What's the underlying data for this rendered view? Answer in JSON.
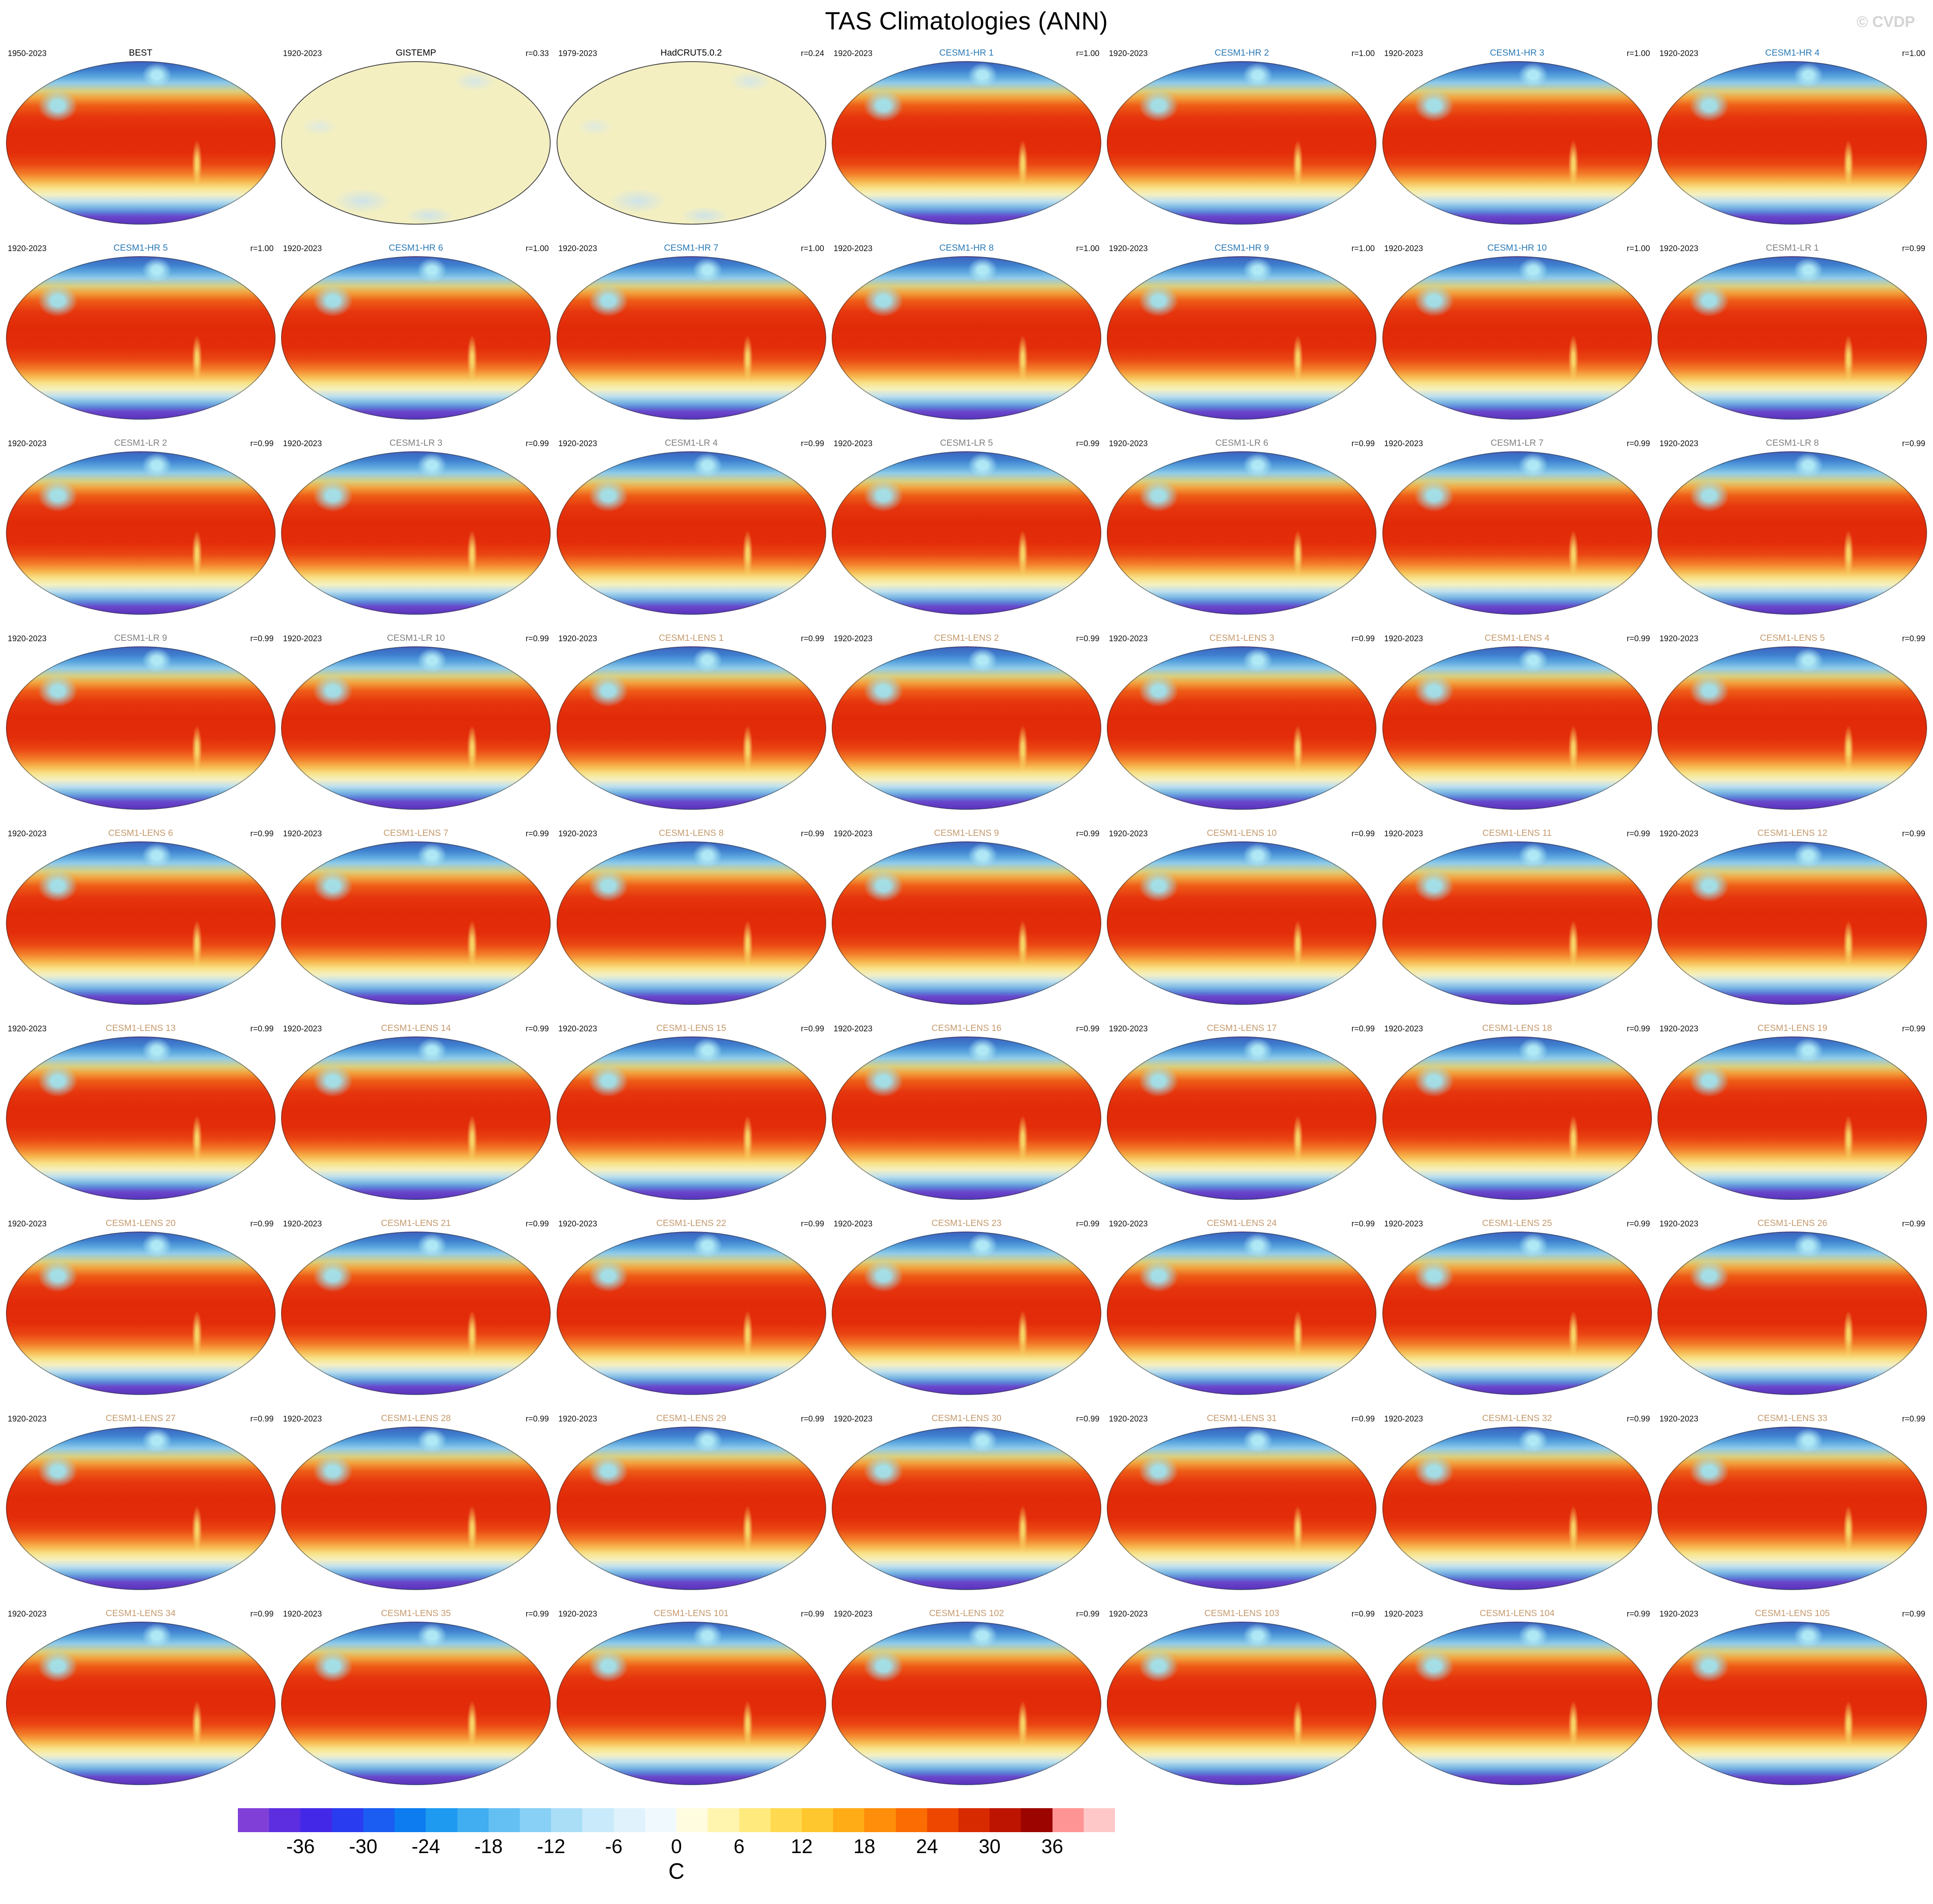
{
  "page": {
    "watermark": "© CVDP"
  },
  "title_colors": {
    "obs": "#000000",
    "hr": "#2a7ab5",
    "lr": "#7f7f7f",
    "lens": "#c59a6d"
  },
  "chart_data": {
    "type": "heatmap",
    "title": "TAS Climatologies (ANN)",
    "subtitle": "Grid of global surface air temperature climatology maps (annual mean), elliptical global projection",
    "units": "C",
    "colorbar": {
      "unit": "C",
      "min": -42,
      "max": 42,
      "step": 3,
      "labels": [
        -36,
        -30,
        -24,
        -18,
        -12,
        -6,
        0,
        6,
        12,
        18,
        24,
        30,
        36
      ],
      "colors": [
        "#8040d8",
        "#5c2ee0",
        "#4428e8",
        "#2a3cf0",
        "#1b5cf2",
        "#0d7cf0",
        "#1e9af0",
        "#40aef0",
        "#64c0f2",
        "#88d0f5",
        "#aadef7",
        "#c8eafa",
        "#e0f3fc",
        "#f0f9fe",
        "#fffce0",
        "#fff5ae",
        "#ffea7e",
        "#ffda50",
        "#ffc72e",
        "#ffac16",
        "#ff8e0a",
        "#fb6c02",
        "#ee4800",
        "#d82a00",
        "#bc1400",
        "#9c0400",
        "#ff9494",
        "#ffc8c8"
      ]
    },
    "panels": [
      {
        "date": "1950-2023",
        "title": "BEST",
        "r": "",
        "group": "obs",
        "style": "warm"
      },
      {
        "date": "1920-2023",
        "title": "GISTEMP",
        "r": "r=0.33",
        "group": "obs",
        "style": "pale"
      },
      {
        "date": "1979-2023",
        "title": "HadCRUT5.0.2",
        "r": "r=0.24",
        "group": "obs",
        "style": "pale"
      },
      {
        "date": "1920-2023",
        "title": "CESM1-HR 1",
        "r": "r=1.00",
        "group": "hr",
        "style": "warm"
      },
      {
        "date": "1920-2023",
        "title": "CESM1-HR 2",
        "r": "r=1.00",
        "group": "hr",
        "style": "warm"
      },
      {
        "date": "1920-2023",
        "title": "CESM1-HR 3",
        "r": "r=1.00",
        "group": "hr",
        "style": "warm"
      },
      {
        "date": "1920-2023",
        "title": "CESM1-HR 4",
        "r": "r=1.00",
        "group": "hr",
        "style": "warm"
      },
      {
        "date": "1920-2023",
        "title": "CESM1-HR 5",
        "r": "r=1.00",
        "group": "hr",
        "style": "warm"
      },
      {
        "date": "1920-2023",
        "title": "CESM1-HR 6",
        "r": "r=1.00",
        "group": "hr",
        "style": "warm"
      },
      {
        "date": "1920-2023",
        "title": "CESM1-HR 7",
        "r": "r=1.00",
        "group": "hr",
        "style": "warm"
      },
      {
        "date": "1920-2023",
        "title": "CESM1-HR 8",
        "r": "r=1.00",
        "group": "hr",
        "style": "warm"
      },
      {
        "date": "1920-2023",
        "title": "CESM1-HR 9",
        "r": "r=1.00",
        "group": "hr",
        "style": "warm"
      },
      {
        "date": "1920-2023",
        "title": "CESM1-HR 10",
        "r": "r=1.00",
        "group": "hr",
        "style": "warm"
      },
      {
        "date": "1920-2023",
        "title": "CESM1-LR 1",
        "r": "r=0.99",
        "group": "lr",
        "style": "warm"
      },
      {
        "date": "1920-2023",
        "title": "CESM1-LR 2",
        "r": "r=0.99",
        "group": "lr",
        "style": "warm"
      },
      {
        "date": "1920-2023",
        "title": "CESM1-LR 3",
        "r": "r=0.99",
        "group": "lr",
        "style": "warm"
      },
      {
        "date": "1920-2023",
        "title": "CESM1-LR 4",
        "r": "r=0.99",
        "group": "lr",
        "style": "warm"
      },
      {
        "date": "1920-2023",
        "title": "CESM1-LR 5",
        "r": "r=0.99",
        "group": "lr",
        "style": "warm"
      },
      {
        "date": "1920-2023",
        "title": "CESM1-LR 6",
        "r": "r=0.99",
        "group": "lr",
        "style": "warm"
      },
      {
        "date": "1920-2023",
        "title": "CESM1-LR 7",
        "r": "r=0.99",
        "group": "lr",
        "style": "warm"
      },
      {
        "date": "1920-2023",
        "title": "CESM1-LR 8",
        "r": "r=0.99",
        "group": "lr",
        "style": "warm"
      },
      {
        "date": "1920-2023",
        "title": "CESM1-LR 9",
        "r": "r=0.99",
        "group": "lr",
        "style": "warm"
      },
      {
        "date": "1920-2023",
        "title": "CESM1-LR 10",
        "r": "r=0.99",
        "group": "lr",
        "style": "warm"
      },
      {
        "date": "1920-2023",
        "title": "CESM1-LENS 1",
        "r": "r=0.99",
        "group": "lens",
        "style": "warm"
      },
      {
        "date": "1920-2023",
        "title": "CESM1-LENS 2",
        "r": "r=0.99",
        "group": "lens",
        "style": "warm"
      },
      {
        "date": "1920-2023",
        "title": "CESM1-LENS 3",
        "r": "r=0.99",
        "group": "lens",
        "style": "warm"
      },
      {
        "date": "1920-2023",
        "title": "CESM1-LENS 4",
        "r": "r=0.99",
        "group": "lens",
        "style": "warm"
      },
      {
        "date": "1920-2023",
        "title": "CESM1-LENS 5",
        "r": "r=0.99",
        "group": "lens",
        "style": "warm"
      },
      {
        "date": "1920-2023",
        "title": "CESM1-LENS 6",
        "r": "r=0.99",
        "group": "lens",
        "style": "warm"
      },
      {
        "date": "1920-2023",
        "title": "CESM1-LENS 7",
        "r": "r=0.99",
        "group": "lens",
        "style": "warm"
      },
      {
        "date": "1920-2023",
        "title": "CESM1-LENS 8",
        "r": "r=0.99",
        "group": "lens",
        "style": "warm"
      },
      {
        "date": "1920-2023",
        "title": "CESM1-LENS 9",
        "r": "r=0.99",
        "group": "lens",
        "style": "warm"
      },
      {
        "date": "1920-2023",
        "title": "CESM1-LENS 10",
        "r": "r=0.99",
        "group": "lens",
        "style": "warm"
      },
      {
        "date": "1920-2023",
        "title": "CESM1-LENS 11",
        "r": "r=0.99",
        "group": "lens",
        "style": "warm"
      },
      {
        "date": "1920-2023",
        "title": "CESM1-LENS 12",
        "r": "r=0.99",
        "group": "lens",
        "style": "warm"
      },
      {
        "date": "1920-2023",
        "title": "CESM1-LENS 13",
        "r": "r=0.99",
        "group": "lens",
        "style": "warm"
      },
      {
        "date": "1920-2023",
        "title": "CESM1-LENS 14",
        "r": "r=0.99",
        "group": "lens",
        "style": "warm"
      },
      {
        "date": "1920-2023",
        "title": "CESM1-LENS 15",
        "r": "r=0.99",
        "group": "lens",
        "style": "warm"
      },
      {
        "date": "1920-2023",
        "title": "CESM1-LENS 16",
        "r": "r=0.99",
        "group": "lens",
        "style": "warm"
      },
      {
        "date": "1920-2023",
        "title": "CESM1-LENS 17",
        "r": "r=0.99",
        "group": "lens",
        "style": "warm"
      },
      {
        "date": "1920-2023",
        "title": "CESM1-LENS 18",
        "r": "r=0.99",
        "group": "lens",
        "style": "warm"
      },
      {
        "date": "1920-2023",
        "title": "CESM1-LENS 19",
        "r": "r=0.99",
        "group": "lens",
        "style": "warm"
      },
      {
        "date": "1920-2023",
        "title": "CESM1-LENS 20",
        "r": "r=0.99",
        "group": "lens",
        "style": "warm"
      },
      {
        "date": "1920-2023",
        "title": "CESM1-LENS 21",
        "r": "r=0.99",
        "group": "lens",
        "style": "warm"
      },
      {
        "date": "1920-2023",
        "title": "CESM1-LENS 22",
        "r": "r=0.99",
        "group": "lens",
        "style": "warm"
      },
      {
        "date": "1920-2023",
        "title": "CESM1-LENS 23",
        "r": "r=0.99",
        "group": "lens",
        "style": "warm"
      },
      {
        "date": "1920-2023",
        "title": "CESM1-LENS 24",
        "r": "r=0.99",
        "group": "lens",
        "style": "warm"
      },
      {
        "date": "1920-2023",
        "title": "CESM1-LENS 25",
        "r": "r=0.99",
        "group": "lens",
        "style": "warm"
      },
      {
        "date": "1920-2023",
        "title": "CESM1-LENS 26",
        "r": "r=0.99",
        "group": "lens",
        "style": "warm"
      },
      {
        "date": "1920-2023",
        "title": "CESM1-LENS 27",
        "r": "r=0.99",
        "group": "lens",
        "style": "warm"
      },
      {
        "date": "1920-2023",
        "title": "CESM1-LENS 28",
        "r": "r=0.99",
        "group": "lens",
        "style": "warm"
      },
      {
        "date": "1920-2023",
        "title": "CESM1-LENS 29",
        "r": "r=0.99",
        "group": "lens",
        "style": "warm"
      },
      {
        "date": "1920-2023",
        "title": "CESM1-LENS 30",
        "r": "r=0.99",
        "group": "lens",
        "style": "warm"
      },
      {
        "date": "1920-2023",
        "title": "CESM1-LENS 31",
        "r": "r=0.99",
        "group": "lens",
        "style": "warm"
      },
      {
        "date": "1920-2023",
        "title": "CESM1-LENS 32",
        "r": "r=0.99",
        "group": "lens",
        "style": "warm"
      },
      {
        "date": "1920-2023",
        "title": "CESM1-LENS 33",
        "r": "r=0.99",
        "group": "lens",
        "style": "warm"
      },
      {
        "date": "1920-2023",
        "title": "CESM1-LENS 34",
        "r": "r=0.99",
        "group": "lens",
        "style": "warm"
      },
      {
        "date": "1920-2023",
        "title": "CESM1-LENS 35",
        "r": "r=0.99",
        "group": "lens",
        "style": "warm"
      },
      {
        "date": "1920-2023",
        "title": "CESM1-LENS 101",
        "r": "r=0.99",
        "group": "lens",
        "style": "warm"
      },
      {
        "date": "1920-2023",
        "title": "CESM1-LENS 102",
        "r": "r=0.99",
        "group": "lens",
        "style": "warm"
      },
      {
        "date": "1920-2023",
        "title": "CESM1-LENS 103",
        "r": "r=0.99",
        "group": "lens",
        "style": "warm"
      },
      {
        "date": "1920-2023",
        "title": "CESM1-LENS 104",
        "r": "r=0.99",
        "group": "lens",
        "style": "warm"
      },
      {
        "date": "1920-2023",
        "title": "CESM1-LENS 105",
        "r": "r=0.99",
        "group": "lens",
        "style": "warm"
      }
    ]
  }
}
